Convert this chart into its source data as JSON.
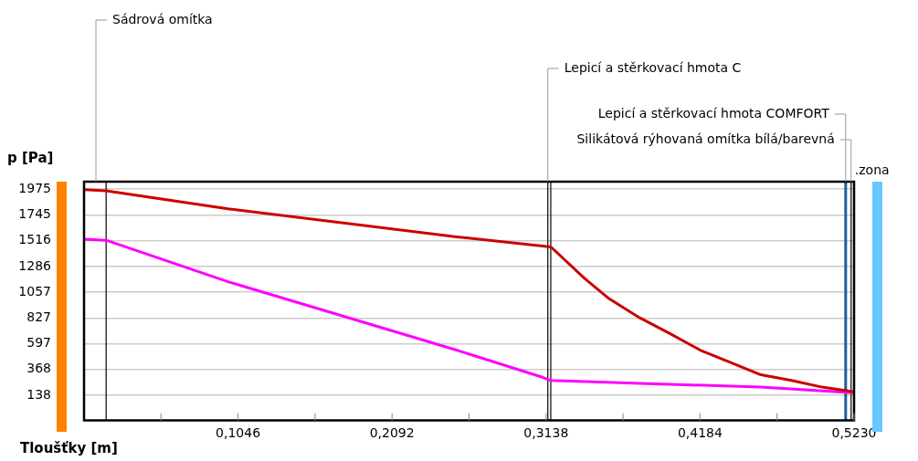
{
  "chart_data": {
    "type": "line",
    "xlabel": "Tloušťky [m]",
    "ylabel": "p [Pa]",
    "xlim": [
      0,
      0.523
    ],
    "ylim": [
      -87,
      2042
    ],
    "xticks": [
      {
        "value": 0.0523,
        "label": null
      },
      {
        "value": 0.1046,
        "label": "0,1046"
      },
      {
        "value": 0.1569,
        "label": null
      },
      {
        "value": 0.2092,
        "label": "0,2092"
      },
      {
        "value": 0.2615,
        "label": null
      },
      {
        "value": 0.3138,
        "label": "0,3138"
      },
      {
        "value": 0.3661,
        "label": null
      },
      {
        "value": 0.4184,
        "label": "0,4184"
      },
      {
        "value": 0.4707,
        "label": null
      },
      {
        "value": 0.523,
        "label": "0,5230"
      }
    ],
    "yticks": [
      138,
      368,
      597,
      827,
      1057,
      1286,
      1516,
      1745,
      1975
    ],
    "grid": "y",
    "legend": false,
    "marker": "none",
    "line_style": "solid",
    "series": [
      {
        "color": "#cc0000",
        "x": [
          0,
          0.015,
          0.0978,
          0.253,
          0.3171,
          0.3399,
          0.3565,
          0.3772,
          0.3976,
          0.4185,
          0.4392,
          0.4597,
          0.4806,
          0.5013,
          0.522
        ],
        "values": [
          1970,
          1960,
          1800,
          1550,
          1460,
          1180,
          1000,
          830,
          690,
          540,
          430,
          320,
          270,
          210,
          170
        ]
      },
      {
        "color": "#ff00ff",
        "x": [
          0,
          0.015,
          0.0978,
          0.253,
          0.3109,
          0.3171,
          0.3875,
          0.4597,
          0.522
        ],
        "values": [
          1530,
          1520,
          1150,
          540,
          300,
          270,
          240,
          210,
          160
        ]
      }
    ],
    "ref_lines": [
      {
        "axis": "x",
        "value": 0.015,
        "color": "#000000"
      },
      {
        "axis": "x",
        "value": 0.315,
        "color": "#000000"
      },
      {
        "axis": "x",
        "value": 0.317,
        "color": "#000000"
      },
      {
        "axis": "x",
        "value": 0.521,
        "color": "#000000"
      },
      {
        "axis": "x",
        "value": 0.5173,
        "color": "#1f5f9f",
        "label": ".zona"
      }
    ],
    "annotations": [
      "Sádrová omítka",
      {
        "text": "Lepicí a stěrkovací hmota C",
        "x": 0.315,
        "y": 2042
      },
      {
        "text": "Lepicí a stěrkovací hmota COMFORT",
        "x": 0.5173,
        "y": 2042
      },
      {
        "text": "Silikátová rýhovaná omítka bílá/barevná",
        "x": 0.521,
        "y": 2042
      }
    ]
  }
}
